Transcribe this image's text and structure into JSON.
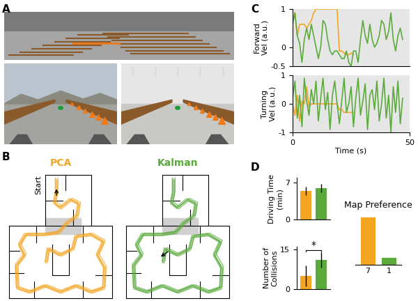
{
  "panels": {
    "A": {
      "label": "A"
    },
    "B": {
      "label": "B",
      "start_label": "Start",
      "conditions": [
        {
          "name": "PCA",
          "color": "#f4a623"
        },
        {
          "name": "Kalman",
          "color": "#5aaa3c"
        }
      ]
    }
  },
  "chart_data": [
    {
      "panel": "C",
      "type": "line",
      "ylabel": "Forward\nVel (a.u.)",
      "xlim": [
        0,
        50
      ],
      "ylim": [
        -0.5,
        1
      ],
      "yticks": [
        -0.5,
        0,
        1
      ],
      "tick_labels": "y",
      "series": [
        {
          "color": "#f4a623",
          "x": [
            0,
            1,
            2,
            3,
            4,
            5,
            6,
            7,
            8,
            9,
            10,
            11,
            12,
            13,
            14,
            15,
            16,
            17,
            18,
            19,
            20,
            21,
            22,
            23,
            24,
            25,
            26
          ],
          "values": [
            0.7,
            0.9,
            0.3,
            0.6,
            0.6,
            0.6,
            0.5,
            0.6,
            0.7,
            0.9,
            1.0,
            1.0,
            1.0,
            1.0,
            1.0,
            1.0,
            1.0,
            1.0,
            1.0,
            1.0,
            -0.1,
            -0.1,
            -0.15,
            -0.2,
            -0.2,
            -0.15,
            -0.2
          ]
        },
        {
          "color": "#5aaa3c",
          "x": [
            0,
            1,
            2,
            3,
            4,
            5,
            6,
            7,
            8,
            9,
            10,
            11,
            12,
            13,
            14,
            15,
            16,
            17,
            18,
            19,
            20,
            21,
            22,
            23,
            24,
            25,
            26,
            27,
            28,
            29,
            30,
            31,
            32,
            33,
            34,
            35,
            36,
            37,
            38,
            39,
            40,
            41,
            42,
            43,
            44,
            45,
            46,
            47
          ],
          "values": [
            0.6,
            0.9,
            0.3,
            0.1,
            -0.4,
            0.2,
            0.5,
            0.2,
            0.6,
            0.3,
            0.0,
            -0.3,
            0.0,
            0.7,
            0.6,
            0.2,
            -0.1,
            -0.2,
            -0.1,
            -0.1,
            -0.2,
            -0.3,
            -0.3,
            -0.1,
            -0.4,
            -0.5,
            -0.1,
            -0.1,
            -0.4,
            0.2,
            0.7,
            0.3,
            0.1,
            0.6,
            0.2,
            0.0,
            0.1,
            0.3,
            0.7,
            0.6,
            0.2,
            0.4,
            0.9,
            0.2,
            -0.1,
            0.3,
            0.5,
            0.2
          ]
        }
      ]
    },
    {
      "panel": null,
      "type": "line",
      "ylabel": "Turning\nVel (a.u.)",
      "xlabel": "Time (s)",
      "xlim": [
        0,
        50
      ],
      "ylim": [
        -1,
        1
      ],
      "yticks": [
        -1,
        0,
        1
      ],
      "xticks": [
        0,
        50
      ],
      "series": [
        {
          "color": "#f4a623",
          "x": [
            0,
            1,
            2,
            3,
            4,
            5,
            6,
            7,
            8,
            9,
            10,
            11,
            12,
            13,
            14,
            15,
            16,
            17,
            18,
            19,
            20,
            21,
            22,
            23,
            24,
            25,
            26
          ],
          "values": [
            0.0,
            -0.4,
            0.3,
            -0.6,
            0.1,
            0.0,
            0.6,
            -0.1,
            0.0,
            0.0,
            0.0,
            0.0,
            0.0,
            0.0,
            0.0,
            0.0,
            0.0,
            0.0,
            0.0,
            0.0,
            -0.2,
            -0.2,
            -0.3,
            -0.3,
            -0.3,
            -0.3,
            -0.3
          ]
        },
        {
          "color": "#5aaa3c",
          "x": [
            0,
            1,
            2,
            3,
            4,
            5,
            6,
            7,
            8,
            9,
            10,
            11,
            12,
            13,
            14,
            15,
            16,
            17,
            18,
            19,
            20,
            21,
            22,
            23,
            24,
            25,
            26,
            27,
            28,
            29,
            30,
            31,
            32,
            33,
            34,
            35,
            36,
            37,
            38,
            39,
            40,
            41,
            42,
            43,
            44,
            45,
            46,
            47
          ],
          "values": [
            0.2,
            0.8,
            -0.5,
            0.3,
            -0.8,
            0.9,
            0.1,
            -0.4,
            0.5,
            0.0,
            0.8,
            -0.6,
            0.2,
            0.9,
            -0.2,
            0.4,
            -0.9,
            0.3,
            0.8,
            0.0,
            -0.7,
            0.1,
            0.9,
            -0.3,
            0.0,
            0.6,
            -0.8,
            0.2,
            0.9,
            -0.4,
            0.1,
            0.7,
            -0.9,
            0.3,
            0.5,
            -0.2,
            0.8,
            -0.6,
            0.0,
            0.9,
            -0.5,
            0.3,
            -1.0,
            0.6,
            -0.3,
            0.8,
            -0.7,
            0.2
          ]
        }
      ]
    },
    {
      "panel": "D",
      "type": "bar",
      "ylabel": "Driving Time\n(min)",
      "categories": [
        null,
        null
      ],
      "values": [
        5.5,
        6.0
      ],
      "errors": [
        0.8,
        0.8
      ],
      "colors": [
        "#f4a623",
        "#5aaa3c"
      ],
      "ylim": [
        0,
        8
      ],
      "yticks": [
        0,
        7
      ]
    },
    {
      "panel": null,
      "type": "bar",
      "ylabel": "Number of\nCollisions",
      "categories": [
        null,
        null
      ],
      "values": [
        5,
        11
      ],
      "errors": [
        4,
        3
      ],
      "colors": [
        "#f4a623",
        "#5aaa3c"
      ],
      "ylim": [
        0,
        16
      ],
      "yticks": [
        0,
        15
      ],
      "annotations": [
        "*"
      ]
    },
    {
      "panel": null,
      "type": "bar",
      "title": "Map Preference",
      "categories": [
        null,
        null
      ],
      "values": [
        7,
        1
      ],
      "colors": [
        "#f4a623",
        "#5aaa3c"
      ],
      "ylim": [
        0,
        7.5
      ],
      "tick_labels": false,
      "data_labels": true
    }
  ]
}
